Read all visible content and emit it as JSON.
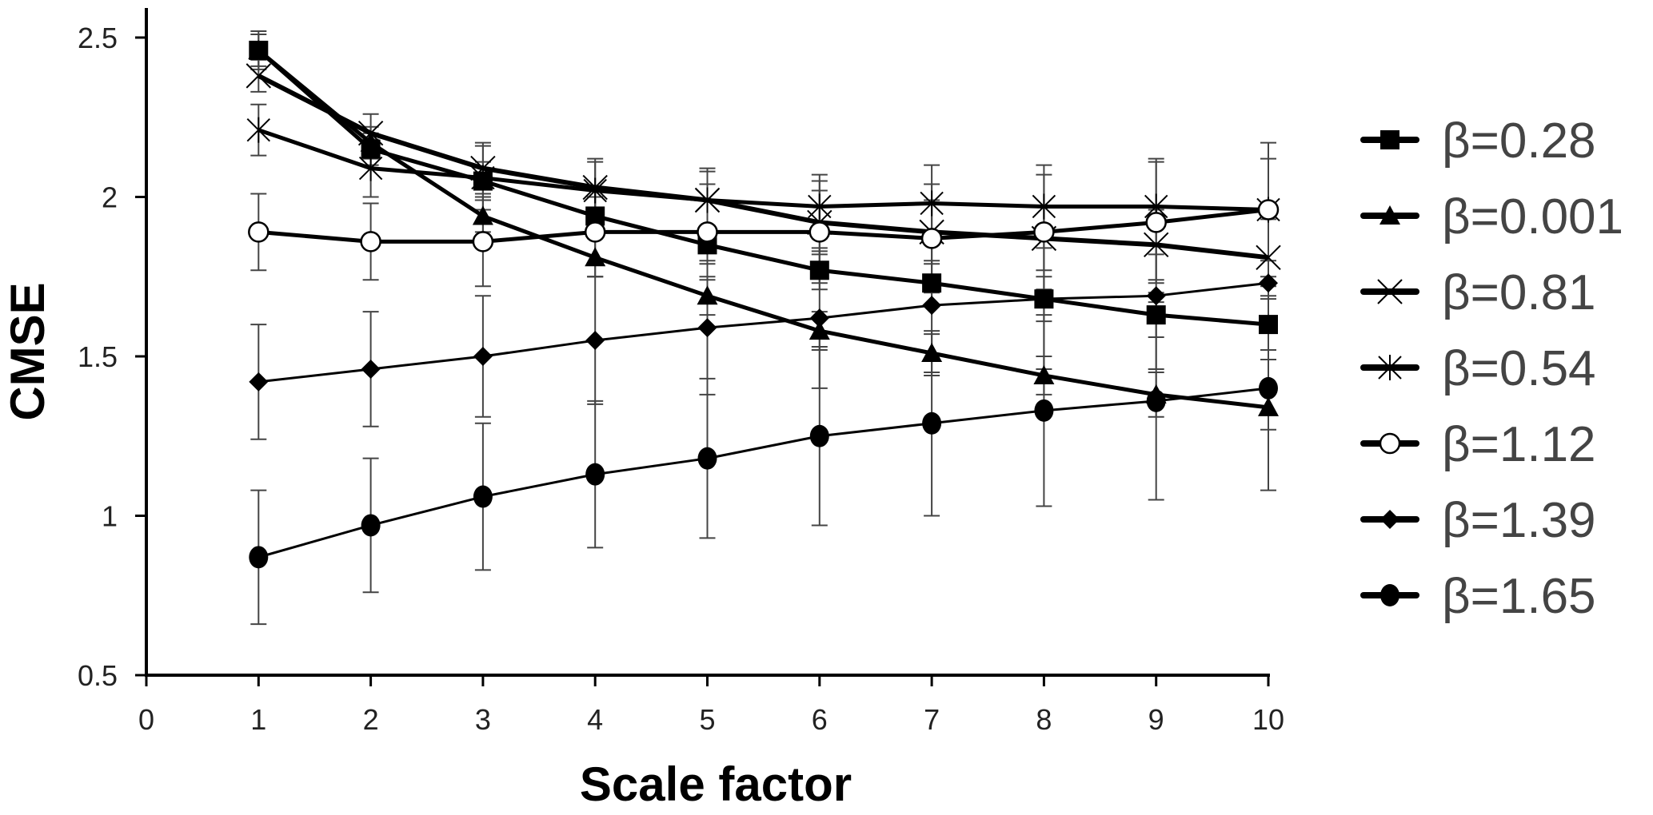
{
  "chart_data": {
    "type": "line",
    "title": "",
    "xlabel": "Scale factor",
    "ylabel": "CMSE",
    "xlim": [
      0,
      10
    ],
    "ylim": [
      0.5,
      2.5
    ],
    "xticks": [
      0,
      1,
      2,
      3,
      4,
      5,
      6,
      7,
      8,
      9,
      10
    ],
    "xtick_labels": [
      "0",
      "1",
      "2",
      "3",
      "4",
      "5",
      "6",
      "7",
      "8",
      "9",
      "10"
    ],
    "yticks": [
      0.5,
      1,
      1.5,
      2,
      2.5
    ],
    "ytick_labels": [
      "0.5",
      "1",
      "1.5",
      "2",
      "2.5"
    ],
    "grid": false,
    "legend_position": "right",
    "x": [
      1,
      2,
      3,
      4,
      5,
      6,
      7,
      8,
      9,
      10
    ],
    "series": [
      {
        "name": "β=0.28",
        "marker": "square",
        "values": [
          2.46,
          2.15,
          2.05,
          1.94,
          1.85,
          1.77,
          1.73,
          1.68,
          1.63,
          1.6
        ],
        "errors": [
          0.06,
          0.05,
          0.06,
          0.06,
          0.06,
          0.06,
          0.07,
          0.07,
          0.07,
          0.08
        ]
      },
      {
        "name": "β=0.001",
        "marker": "triangle",
        "values": [
          2.46,
          2.17,
          1.94,
          1.81,
          1.69,
          1.58,
          1.51,
          1.44,
          1.38,
          1.34
        ],
        "errors": [
          0.05,
          0.05,
          0.05,
          0.06,
          0.06,
          0.06,
          0.06,
          0.06,
          0.07,
          0.07
        ]
      },
      {
        "name": "β=0.81",
        "marker": "x",
        "values": [
          2.38,
          2.2,
          2.09,
          2.03,
          1.99,
          1.92,
          1.89,
          1.87,
          1.85,
          1.81
        ],
        "errors": [
          0.05,
          0.06,
          0.08,
          0.08,
          0.09,
          0.1,
          0.1,
          0.1,
          0.11,
          0.12
        ]
      },
      {
        "name": "β=0.54",
        "marker": "star",
        "values": [
          2.21,
          2.09,
          2.06,
          2.02,
          1.99,
          1.97,
          1.98,
          1.97,
          1.97,
          1.96
        ],
        "errors": [
          0.08,
          0.09,
          0.1,
          0.1,
          0.1,
          0.1,
          0.12,
          0.13,
          0.15,
          0.16
        ]
      },
      {
        "name": "β=1.12",
        "marker": "circle-open",
        "values": [
          1.89,
          1.86,
          1.86,
          1.89,
          1.89,
          1.89,
          1.87,
          1.89,
          1.92,
          1.96
        ],
        "errors": [
          0.12,
          0.12,
          0.14,
          0.14,
          0.15,
          0.16,
          0.17,
          0.18,
          0.19,
          0.21
        ]
      },
      {
        "name": "β=1.39",
        "marker": "diamond",
        "values": [
          1.42,
          1.46,
          1.5,
          1.55,
          1.59,
          1.62,
          1.66,
          1.68,
          1.69,
          1.73
        ],
        "errors": [
          0.18,
          0.18,
          0.19,
          0.2,
          0.21,
          0.22,
          0.22,
          0.22,
          0.23,
          0.24
        ]
      },
      {
        "name": "β=1.65",
        "marker": "circle-filled",
        "values": [
          0.87,
          0.97,
          1.06,
          1.13,
          1.18,
          1.25,
          1.29,
          1.33,
          1.36,
          1.4
        ],
        "errors": [
          0.21,
          0.21,
          0.23,
          0.23,
          0.25,
          0.28,
          0.29,
          0.3,
          0.31,
          0.32
        ]
      }
    ]
  },
  "colors": {
    "line": "#000000",
    "errorbar": "#444444",
    "legend_text": "#444444",
    "axis_text": "#222222"
  }
}
